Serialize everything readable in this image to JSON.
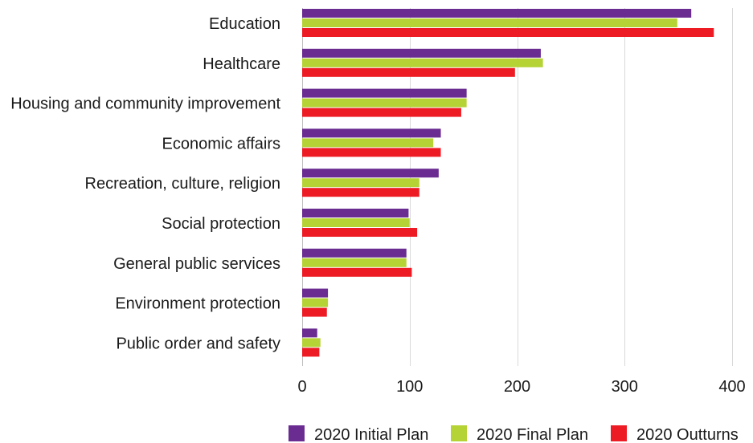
{
  "chart_data": {
    "type": "bar",
    "orientation": "horizontal",
    "categories": [
      "Education",
      "Healthcare",
      "Housing and community improvement",
      "Economic affairs",
      "Recreation, culture, religion",
      "Social protection",
      "General public services",
      "Environment protection",
      "Public order and safety"
    ],
    "series": [
      {
        "name": "2020 Initial Plan",
        "color": "#6a2c91",
        "values": [
          362,
          222,
          153,
          129,
          127,
          99,
          97,
          24,
          14
        ]
      },
      {
        "name": "2020 Final Plan",
        "color": "#b5d334",
        "values": [
          349,
          224,
          153,
          122,
          109,
          100,
          97,
          24,
          17
        ]
      },
      {
        "name": "2020 Outturns",
        "color": "#ed1c24",
        "values": [
          383,
          198,
          148,
          129,
          109,
          107,
          102,
          23,
          16
        ]
      }
    ],
    "xticks": [
      "0",
      "100",
      "200",
      "300",
      "400"
    ],
    "xlim": [
      0,
      400
    ],
    "grid": true,
    "legend": "bottom"
  }
}
